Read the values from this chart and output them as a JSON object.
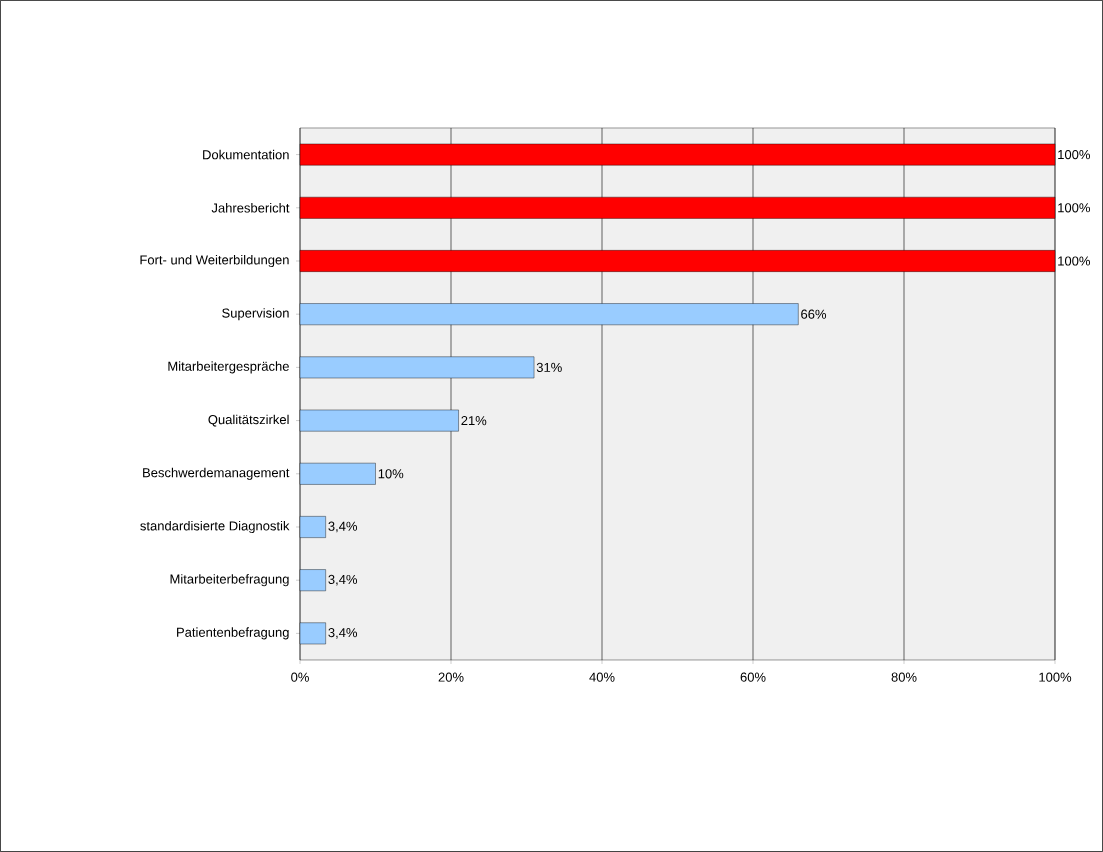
{
  "chart_data": {
    "type": "bar",
    "orientation": "horizontal",
    "categories": [
      "Dokumentation",
      "Jahresbericht",
      "Fort- und Weiterbildungen",
      "Supervision",
      "Mitarbeitergespräche",
      "Qualitätszirkel",
      "Beschwerdemanagement",
      "standardisierte Diagnostik",
      "Mitarbeiterbefragung",
      "Patientenbefragung"
    ],
    "values": [
      100,
      100,
      100,
      66,
      31,
      21,
      10,
      3.4,
      3.4,
      3.4
    ],
    "colors": [
      "#ff0000",
      "#ff0000",
      "#ff0000",
      "#99ccff",
      "#99ccff",
      "#99ccff",
      "#99ccff",
      "#99ccff",
      "#99ccff",
      "#99ccff"
    ],
    "value_labels": [
      "100%",
      "100%",
      "100%",
      "66%",
      "31%",
      "21%",
      "10%",
      "3,4%",
      "3,4%",
      "3,4%"
    ],
    "xlim": [
      0,
      100
    ],
    "xticks": [
      {
        "value": 0,
        "label": "0%"
      },
      {
        "value": 20,
        "label": "20%"
      },
      {
        "value": 40,
        "label": "40%"
      },
      {
        "value": 60,
        "label": "60%"
      },
      {
        "value": 80,
        "label": "80%"
      },
      {
        "value": 100,
        "label": "100%"
      }
    ],
    "grid": "x"
  }
}
